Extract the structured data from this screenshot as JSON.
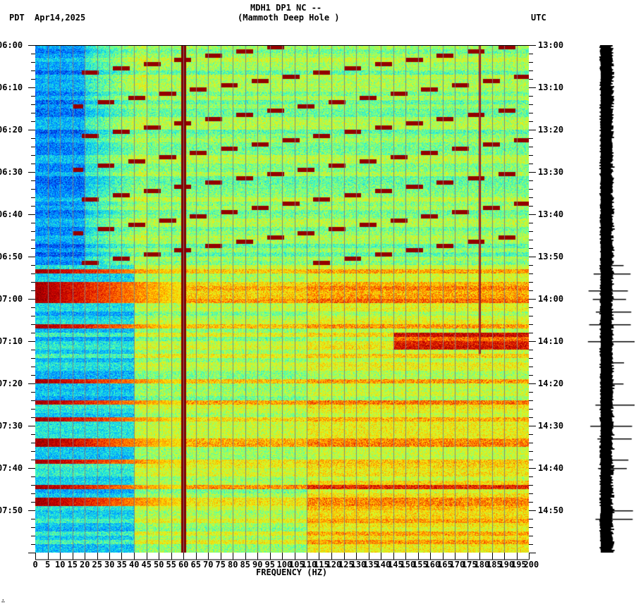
{
  "header": {
    "station_line": "MDH1 DP1 NC --",
    "station_name": "(Mammoth Deep Hole )",
    "left_tz": "PDT",
    "date": "Apr14,2025",
    "right_tz": "UTC"
  },
  "footer": {
    "corner_mark": "∴"
  },
  "chart_data": {
    "type": "heatmap",
    "title": "MDH1 DP1 NC -- (Mammoth Deep Hole )",
    "xlabel": "FREQUENCY (HZ)",
    "ylabel_left": "PDT",
    "ylabel_right": "UTC",
    "xlim": [
      0,
      200
    ],
    "x_ticks": [
      "0",
      "5",
      "10",
      "15",
      "20",
      "25",
      "30",
      "35",
      "40",
      "45",
      "50",
      "55",
      "60",
      "65",
      "70",
      "75",
      "80",
      "85",
      "90",
      "95",
      "100",
      "105",
      "110",
      "115",
      "120",
      "125",
      "130",
      "135",
      "140",
      "145",
      "150",
      "155",
      "160",
      "165",
      "170",
      "175",
      "180",
      "185",
      "190",
      "195",
      "200"
    ],
    "y_ticks_left": [
      "06:00",
      "06:10",
      "06:20",
      "06:30",
      "06:40",
      "06:50",
      "07:00",
      "07:10",
      "07:20",
      "07:30",
      "07:40",
      "07:50"
    ],
    "y_ticks_right": [
      "13:00",
      "13:10",
      "13:20",
      "13:30",
      "13:40",
      "13:50",
      "14:00",
      "14:10",
      "14:20",
      "14:30",
      "14:40",
      "14:50"
    ],
    "time_span_minutes": 120,
    "minor_tick_minutes": 2,
    "grid_hz": 5,
    "colormap": [
      "#00008f",
      "#0050ff",
      "#00bfff",
      "#40ffbf",
      "#bfff40",
      "#ffdf00",
      "#ff6000",
      "#d00000",
      "#800000"
    ],
    "features": [
      {
        "name": "60 Hz power line",
        "freq_hz": 60,
        "color": "#800000"
      },
      {
        "name": "180 Hz harmonic",
        "freq_hz": 180,
        "color": "#800000"
      },
      {
        "name": "low-frequency quiet band",
        "freq_range_hz": [
          0,
          20
        ],
        "time_range": [
          "06:00",
          "06:52"
        ],
        "level": "low"
      },
      {
        "name": "broadband noise bursts",
        "time_range": [
          "06:52",
          "07:42"
        ],
        "freq_range_hz": [
          0,
          60
        ],
        "level": "high"
      },
      {
        "name": "elevated noise",
        "time_range": [
          "07:07",
          "07:11"
        ],
        "freq_range_hz": [
          145,
          200
        ],
        "level": "high"
      }
    ]
  },
  "seismogram": {
    "label": "trace",
    "burst_times": [
      "13:52",
      "13:54",
      "13:58",
      "14:00",
      "14:03",
      "14:06",
      "14:10",
      "14:15",
      "14:20",
      "14:25",
      "14:30",
      "14:33",
      "14:38",
      "14:40",
      "14:50",
      "14:52"
    ]
  }
}
